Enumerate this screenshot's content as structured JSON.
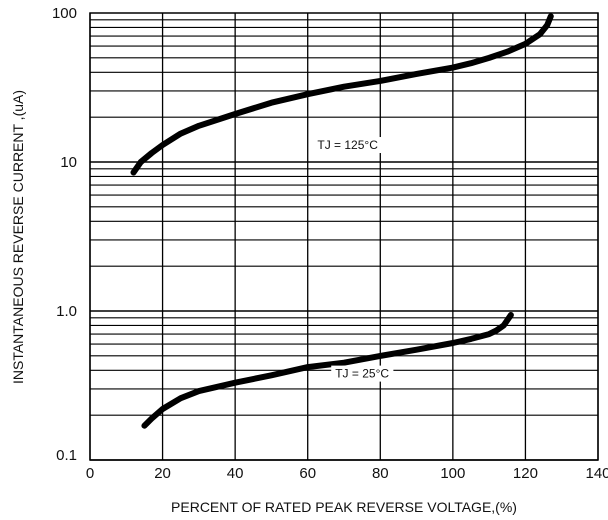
{
  "chart_data": {
    "type": "line",
    "xlabel": "PERCENT OF RATED PEAK REVERSE VOLTAGE,(%)",
    "ylabel": "INSTANTANEOUS REVERSE CURRENT ,(uA)",
    "xlim": [
      0,
      140
    ],
    "ylim": [
      0.1,
      100
    ],
    "yscale": "log",
    "grid": true,
    "x_ticks": [
      {
        "value": 0,
        "label": "0"
      },
      {
        "value": 20,
        "label": "20"
      },
      {
        "value": 40,
        "label": "40"
      },
      {
        "value": 60,
        "label": "60"
      },
      {
        "value": 80,
        "label": "80"
      },
      {
        "value": 100,
        "label": "100"
      },
      {
        "value": 120,
        "label": "120"
      },
      {
        "value": 140,
        "label": "140"
      }
    ],
    "y_ticks": [
      {
        "value": 0.1,
        "label": "0.1"
      },
      {
        "value": 1.0,
        "label": "1.0"
      },
      {
        "value": 10,
        "label": "10"
      },
      {
        "value": 100,
        "label": "100"
      }
    ],
    "series": [
      {
        "name": "TJ = 125°C",
        "x": [
          12,
          14,
          17,
          20,
          25,
          30,
          40,
          50,
          60,
          70,
          80,
          90,
          100,
          105,
          110,
          115,
          120,
          124,
          126,
          127
        ],
        "y": [
          8.5,
          10,
          11.5,
          13,
          15.5,
          17.5,
          21,
          25,
          28.5,
          32,
          35,
          39,
          43,
          46,
          50,
          55,
          62,
          72,
          83,
          95
        ]
      },
      {
        "name": "TJ = 25°C",
        "x": [
          15,
          17,
          20,
          25,
          30,
          40,
          50,
          60,
          70,
          80,
          90,
          100,
          105,
          110,
          112,
          114,
          116
        ],
        "y": [
          0.17,
          0.19,
          0.22,
          0.26,
          0.29,
          0.33,
          0.37,
          0.42,
          0.45,
          0.5,
          0.55,
          0.61,
          0.65,
          0.7,
          0.74,
          0.8,
          0.94
        ]
      }
    ]
  }
}
